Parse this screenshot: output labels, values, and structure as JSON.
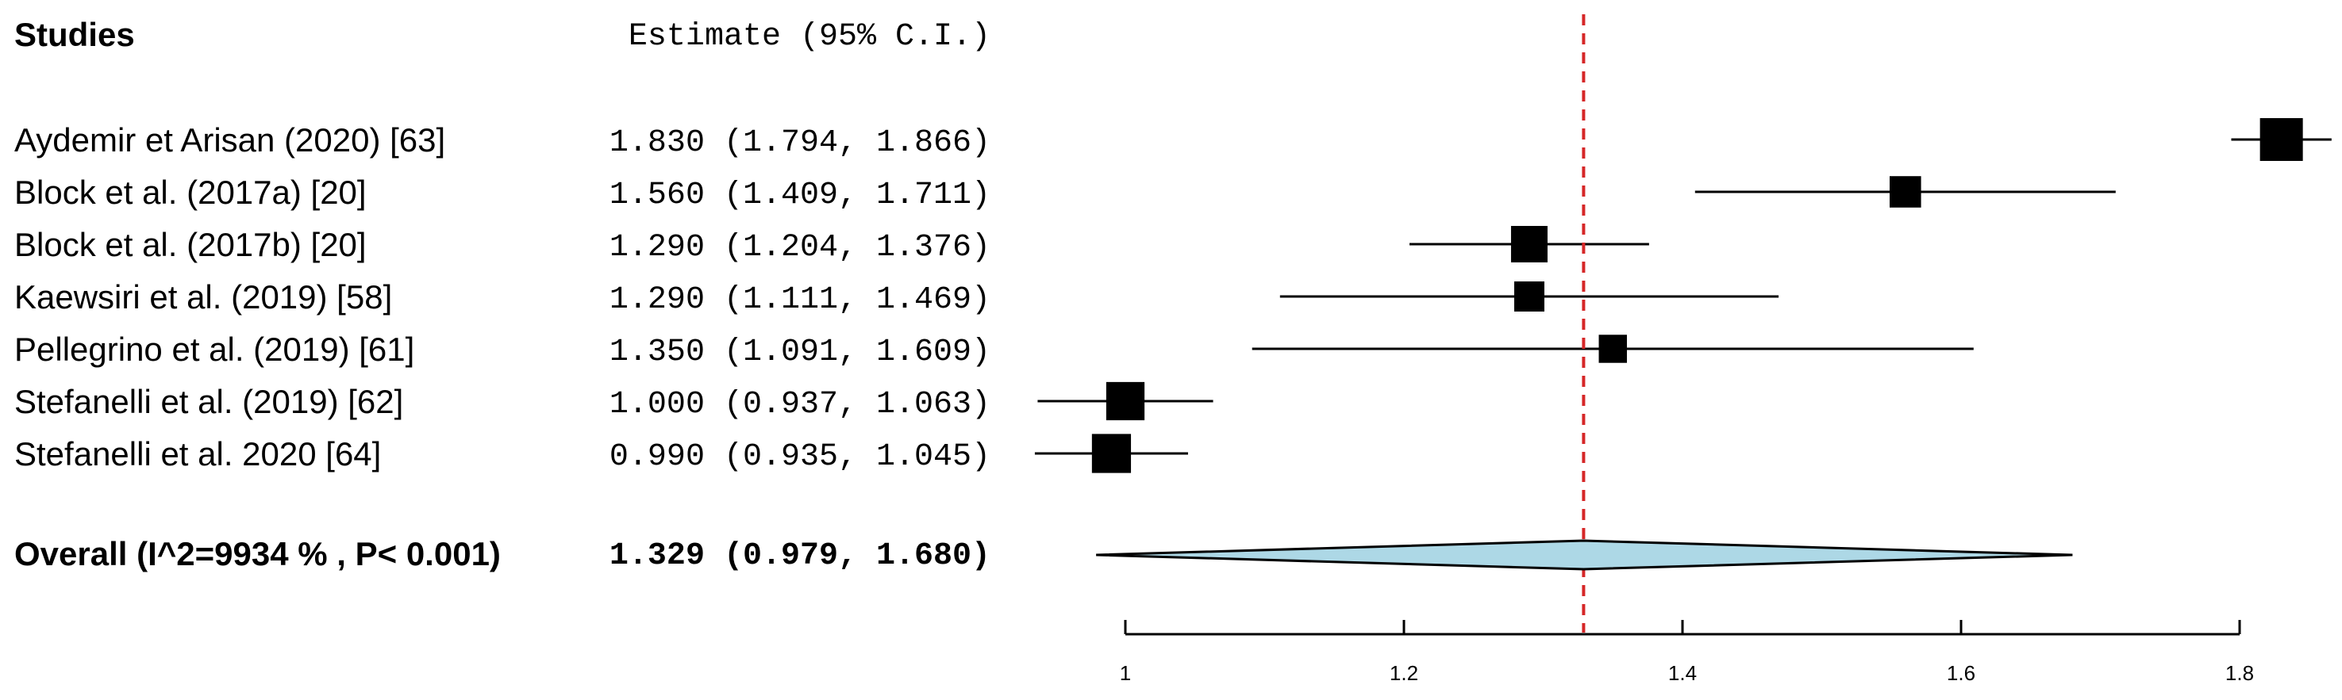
{
  "chart_data": {
    "type": "forest",
    "header": {
      "studies_label": "Studies",
      "estimate_label": "Estimate (95% C.I.)"
    },
    "studies": [
      {
        "name": "Aydemir et Arisan (2020) [63]",
        "estimate": 1.83,
        "lower": 1.794,
        "upper": 1.866,
        "text": "1.830 (1.794, 1.866)",
        "weight": 1.0
      },
      {
        "name": "Block et al. (2017a) [20]",
        "estimate": 1.56,
        "lower": 1.409,
        "upper": 1.711,
        "text": "1.560 (1.409, 1.711)",
        "weight": 0.55
      },
      {
        "name": "Block et al. (2017b) [20]",
        "estimate": 1.29,
        "lower": 1.204,
        "upper": 1.376,
        "text": "1.290 (1.204, 1.376)",
        "weight": 0.75
      },
      {
        "name": "Kaewsiri et al. (2019) [58]",
        "estimate": 1.29,
        "lower": 1.111,
        "upper": 1.469,
        "text": "1.290 (1.111, 1.469)",
        "weight": 0.5
      },
      {
        "name": "Pellegrino et al. (2019) [61]",
        "estimate": 1.35,
        "lower": 1.091,
        "upper": 1.609,
        "text": "1.350 (1.091, 1.609)",
        "weight": 0.42
      },
      {
        "name": "Stefanelli et al. (2019) [62]",
        "estimate": 1.0,
        "lower": 0.937,
        "upper": 1.063,
        "text": "1.000 (0.937, 1.063)",
        "weight": 0.82
      },
      {
        "name": "Stefanelli et al. 2020  [64]",
        "estimate": 0.99,
        "lower": 0.935,
        "upper": 1.045,
        "text": "0.990 (0.935, 1.045)",
        "weight": 0.85
      }
    ],
    "overall": {
      "label": "Overall (I^2=9934 % , P< 0.001)",
      "estimate": 1.329,
      "lower": 0.979,
      "upper": 1.68,
      "text": "1.329 (0.979, 1.680)"
    },
    "x_ticks": [
      1,
      1.2,
      1.4,
      1.6,
      1.8
    ],
    "x_tick_labels": [
      "1",
      "1.2",
      "1.4",
      "1.6",
      "1.8"
    ],
    "xlim": [
      0.935,
      1.866
    ],
    "reference_line": 1.329,
    "colors": {
      "diamond_fill": "#add8e6",
      "reference_line": "#d62728",
      "marker": "#000000"
    }
  }
}
